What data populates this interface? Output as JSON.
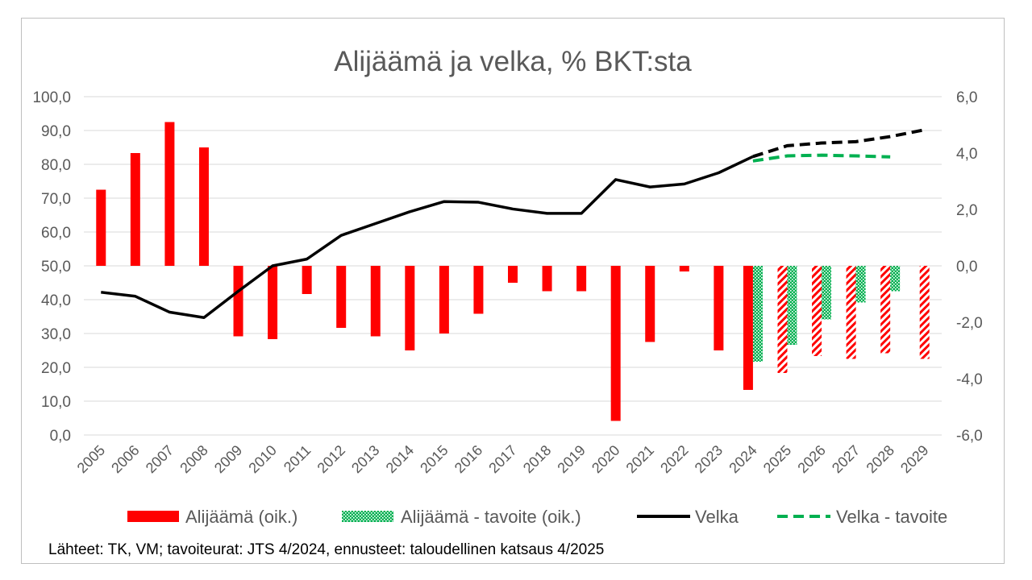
{
  "chart_data": {
    "type": "bar",
    "title": "Alijäämä ja velka, % BKT:sta",
    "categories": [
      "2005",
      "2006",
      "2007",
      "2008",
      "2009",
      "2010",
      "2011",
      "2012",
      "2013",
      "2014",
      "2015",
      "2016",
      "2017",
      "2018",
      "2019",
      "2020",
      "2021",
      "2022",
      "2023",
      "2024",
      "2025",
      "2026",
      "2027",
      "2028",
      "2029"
    ],
    "y_left": {
      "min": 0,
      "max": 100,
      "ticks": [
        "0,0",
        "10,0",
        "20,0",
        "30,0",
        "40,0",
        "50,0",
        "60,0",
        "70,0",
        "80,0",
        "90,0",
        "100,0"
      ]
    },
    "y_right": {
      "min": -6,
      "max": 6,
      "ticks": [
        "-6,0",
        "-4,0",
        "-2,0",
        "0,0",
        "2,0",
        "4,0",
        "6,0"
      ]
    },
    "gridlines": true,
    "legend_position": "bottom",
    "series": [
      {
        "name": "Alijäämä (oik.)",
        "kind": "bar",
        "axis": "right",
        "color": "#ff0000",
        "values": [
          2.7,
          4.0,
          5.1,
          4.2,
          -2.5,
          -2.6,
          -1.0,
          -2.2,
          -2.5,
          -3.0,
          -2.4,
          -1.7,
          -0.6,
          -0.9,
          -0.9,
          -5.5,
          -2.7,
          -0.2,
          -3.0,
          -4.4,
          -3.8,
          -3.2,
          -3.3,
          -3.1,
          -3.3
        ],
        "forecast_from": "2025",
        "forecast_pattern": "red-white diagonal hatch"
      },
      {
        "name": "Alijäämä - tavoite (oik.)",
        "kind": "bar",
        "axis": "right",
        "color": "#00b050",
        "pattern": "green dotted",
        "values": [
          null,
          null,
          null,
          null,
          null,
          null,
          null,
          null,
          null,
          null,
          null,
          null,
          null,
          null,
          null,
          null,
          null,
          null,
          null,
          -3.4,
          -2.8,
          -1.9,
          -1.3,
          -0.9,
          null
        ]
      },
      {
        "name": "Velka",
        "kind": "line",
        "axis": "left",
        "color": "#000000",
        "values": [
          42.2,
          41.0,
          36.3,
          34.7,
          42.5,
          50.0,
          52.0,
          59.0,
          62.5,
          66.0,
          69.0,
          68.8,
          66.8,
          65.5,
          65.5,
          75.5,
          73.3,
          74.2,
          77.5,
          82.3,
          85.5,
          86.3,
          86.7,
          88.2,
          90.2
        ],
        "forecast_from": "2024",
        "forecast_style": "dashed"
      },
      {
        "name": "Velka - tavoite",
        "kind": "line",
        "axis": "left",
        "color": "#00b050",
        "style": "dashed",
        "values": [
          null,
          null,
          null,
          null,
          null,
          null,
          null,
          null,
          null,
          null,
          null,
          null,
          null,
          null,
          null,
          null,
          null,
          null,
          null,
          81.0,
          82.5,
          82.7,
          82.5,
          82.2,
          null
        ]
      }
    ],
    "legend": [
      "Alijäämä (oik.)",
      "Alijäämä - tavoite (oik.)",
      "Velka",
      "Velka - tavoite"
    ],
    "source": "Lähteet: TK, VM;  tavoiteurat: JTS 4/2024, ennusteet: taloudellinen katsaus 4/2025"
  }
}
